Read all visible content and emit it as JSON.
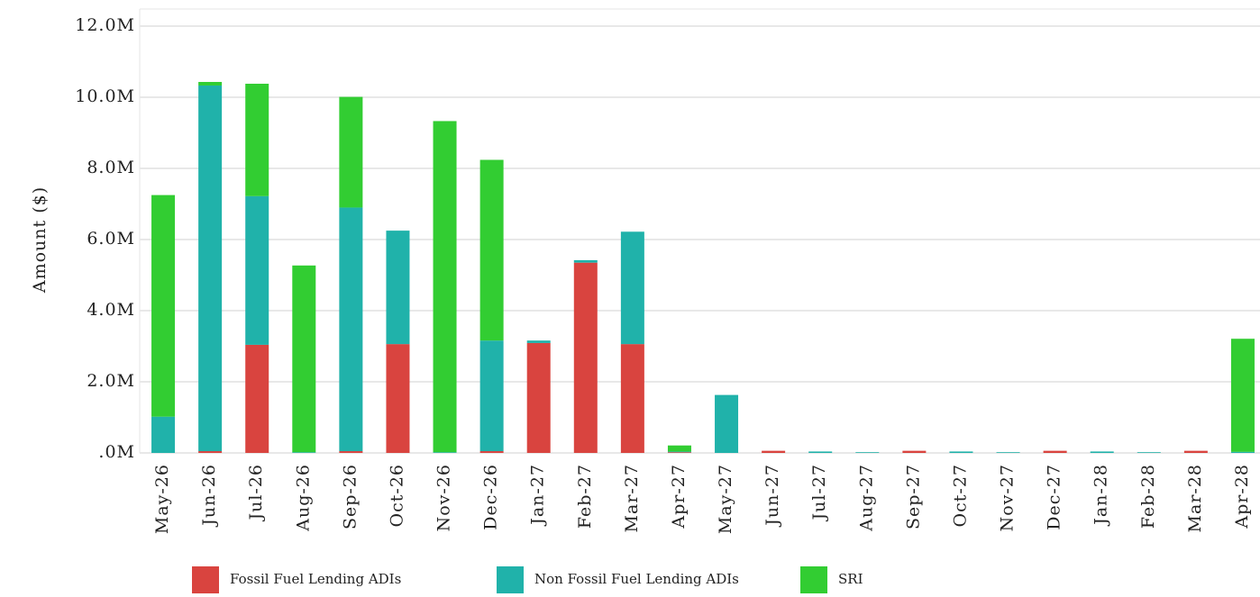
{
  "chart_data": {
    "type": "bar",
    "stacked": true,
    "y_label": "Amount ($)",
    "categories": [
      "May-26",
      "Jun-26",
      "Jul-26",
      "Aug-26",
      "Sep-26",
      "Oct-26",
      "Nov-26",
      "Dec-26",
      "Jan-27",
      "Feb-27",
      "Mar-27",
      "Apr-27",
      "May-27",
      "Jun-27",
      "Jul-27",
      "Aug-27",
      "Sep-27",
      "Oct-27",
      "Nov-27",
      "Dec-27",
      "Jan-28",
      "Feb-28",
      "Mar-28",
      "Apr-28"
    ],
    "series": [
      {
        "name": "Fossil Fuel Lending ADIs",
        "color": "#d9443f",
        "values": [
          0,
          50000,
          3040000,
          0,
          50000,
          3060000,
          0,
          50000,
          3090000,
          5350000,
          3060000,
          20000,
          0,
          60000,
          0,
          0,
          60000,
          0,
          0,
          60000,
          0,
          0,
          60000,
          0
        ]
      },
      {
        "name": "Non Fossil Fuel Lending ADIs",
        "color": "#20b2aa",
        "values": [
          1020000,
          10280000,
          4180000,
          20000,
          6850000,
          3190000,
          20000,
          3110000,
          70000,
          70000,
          3160000,
          20000,
          1630000,
          0,
          40000,
          20000,
          0,
          40000,
          20000,
          0,
          40000,
          20000,
          0,
          30000
        ]
      },
      {
        "name": "SRI",
        "color": "#32cd32",
        "values": [
          6230000,
          100000,
          3160000,
          5250000,
          3110000,
          0,
          9310000,
          5080000,
          0,
          0,
          0,
          170000,
          0,
          0,
          0,
          0,
          0,
          0,
          0,
          0,
          0,
          0,
          0,
          3180000
        ]
      }
    ],
    "ylim": [
      0,
      12000000
    ],
    "yticks": [
      {
        "value": 0,
        "label": ".0M"
      },
      {
        "value": 2000000,
        "label": "2.0M"
      },
      {
        "value": 4000000,
        "label": "4.0M"
      },
      {
        "value": 6000000,
        "label": "6.0M"
      },
      {
        "value": 8000000,
        "label": "8.0M"
      },
      {
        "value": 10000000,
        "label": "10.0M"
      },
      {
        "value": 12000000,
        "label": "12.0M"
      }
    ],
    "grid": true,
    "legend": "bottom"
  }
}
